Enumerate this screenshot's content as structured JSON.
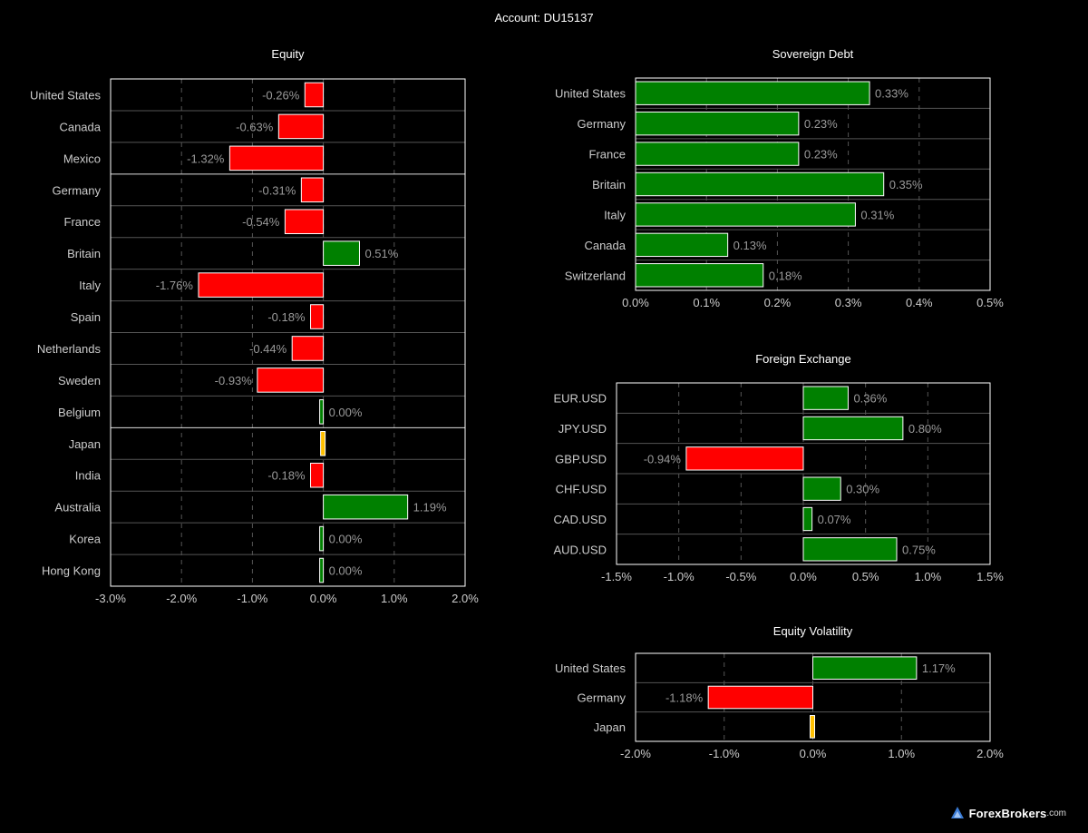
{
  "page": {
    "title": "Account: DU15137"
  },
  "colors": {
    "positive": "#008000",
    "negative": "#ff0000",
    "neutral": "#ffc000",
    "bar_outline": "#ffffff",
    "frame": "#ffffff",
    "grid_dashed": "#555555",
    "row_line": "#555555",
    "label_text": "#cccccc",
    "value_text": "#9a9a9a"
  },
  "watermark": {
    "name": "ForexBrokers",
    "tld": ".com",
    "logo_icon": "fb-logo-icon"
  },
  "chart_data": [
    {
      "id": "equity",
      "type": "bar",
      "orientation": "horizontal",
      "title": "Equity",
      "xlim": [
        -3.0,
        2.0
      ],
      "ticks": [
        -3.0,
        -2.0,
        -1.0,
        0.0,
        1.0,
        2.0
      ],
      "tick_labels": [
        "-3.0%",
        "-2.0%",
        "-1.0%",
        "0.0%",
        "1.0%",
        "2.0%"
      ],
      "grid": "dashed-vertical",
      "group_separators_after": [
        2,
        10
      ],
      "categories": [
        "United States",
        "Canada",
        "Mexico",
        "Germany",
        "France",
        "Britain",
        "Italy",
        "Spain",
        "Netherlands",
        "Sweden",
        "Belgium",
        "Japan",
        "India",
        "Australia",
        "Korea",
        "Hong Kong"
      ],
      "values": [
        -0.26,
        -0.63,
        -1.32,
        -0.31,
        -0.54,
        0.51,
        -1.76,
        -0.18,
        -0.44,
        -0.93,
        0.0,
        0.0,
        -0.18,
        1.19,
        0.0,
        0.0
      ],
      "data_labels": [
        "-0.26%",
        "-0.63%",
        "-1.32%",
        "-0.31%",
        "-0.54%",
        "0.51%",
        "-1.76%",
        "-0.18%",
        "-0.44%",
        "-0.93%",
        "0.00%",
        "",
        "-0.18%",
        "1.19%",
        "0.00%",
        "0.00%"
      ],
      "bar_status": [
        "neg",
        "neg",
        "neg",
        "neg",
        "neg",
        "pos",
        "neg",
        "neg",
        "neg",
        "neg",
        "pos",
        "neutral",
        "neg",
        "pos",
        "pos",
        "pos"
      ]
    },
    {
      "id": "sovereign-debt",
      "type": "bar",
      "orientation": "horizontal",
      "title": "Sovereign Debt",
      "xlim": [
        0.0,
        0.5
      ],
      "ticks": [
        0.0,
        0.1,
        0.2,
        0.3,
        0.4,
        0.5
      ],
      "tick_labels": [
        "0.0%",
        "0.1%",
        "0.2%",
        "0.3%",
        "0.4%",
        "0.5%"
      ],
      "grid": "dashed-vertical",
      "group_separators_after": [],
      "categories": [
        "United States",
        "Germany",
        "France",
        "Britain",
        "Italy",
        "Canada",
        "Switzerland"
      ],
      "values": [
        0.33,
        0.23,
        0.23,
        0.35,
        0.31,
        0.13,
        0.18
      ],
      "data_labels": [
        "0.33%",
        "0.23%",
        "0.23%",
        "0.35%",
        "0.31%",
        "0.13%",
        "0.18%"
      ],
      "bar_status": [
        "pos",
        "pos",
        "pos",
        "pos",
        "pos",
        "pos",
        "pos"
      ]
    },
    {
      "id": "foreign-exchange",
      "type": "bar",
      "orientation": "horizontal",
      "title": "Foreign Exchange",
      "xlim": [
        -1.5,
        1.5
      ],
      "ticks": [
        -1.5,
        -1.0,
        -0.5,
        0.0,
        0.5,
        1.0,
        1.5
      ],
      "tick_labels": [
        "-1.5%",
        "-1.0%",
        "-0.5%",
        "0.0%",
        "0.5%",
        "1.0%",
        "1.5%"
      ],
      "grid": "dashed-vertical",
      "group_separators_after": [],
      "categories": [
        "EUR.USD",
        "JPY.USD",
        "GBP.USD",
        "CHF.USD",
        "CAD.USD",
        "AUD.USD"
      ],
      "values": [
        0.36,
        0.8,
        -0.94,
        0.3,
        0.07,
        0.75
      ],
      "data_labels": [
        "0.36%",
        "0.80%",
        "-0.94%",
        "0.30%",
        "0.07%",
        "0.75%"
      ],
      "bar_status": [
        "pos",
        "pos",
        "neg",
        "pos",
        "pos",
        "pos"
      ]
    },
    {
      "id": "equity-volatility",
      "type": "bar",
      "orientation": "horizontal",
      "title": "Equity Volatility",
      "xlim": [
        -2.0,
        2.0
      ],
      "ticks": [
        -2.0,
        -1.0,
        0.0,
        1.0,
        2.0
      ],
      "tick_labels": [
        "-2.0%",
        "-1.0%",
        "0.0%",
        "1.0%",
        "2.0%"
      ],
      "grid": "dashed-vertical",
      "group_separators_after": [],
      "categories": [
        "United States",
        "Germany",
        "Japan"
      ],
      "values": [
        1.17,
        -1.18,
        0.0
      ],
      "data_labels": [
        "1.17%",
        "-1.18%",
        ""
      ],
      "bar_status": [
        "pos",
        "neg",
        "neutral"
      ]
    }
  ]
}
